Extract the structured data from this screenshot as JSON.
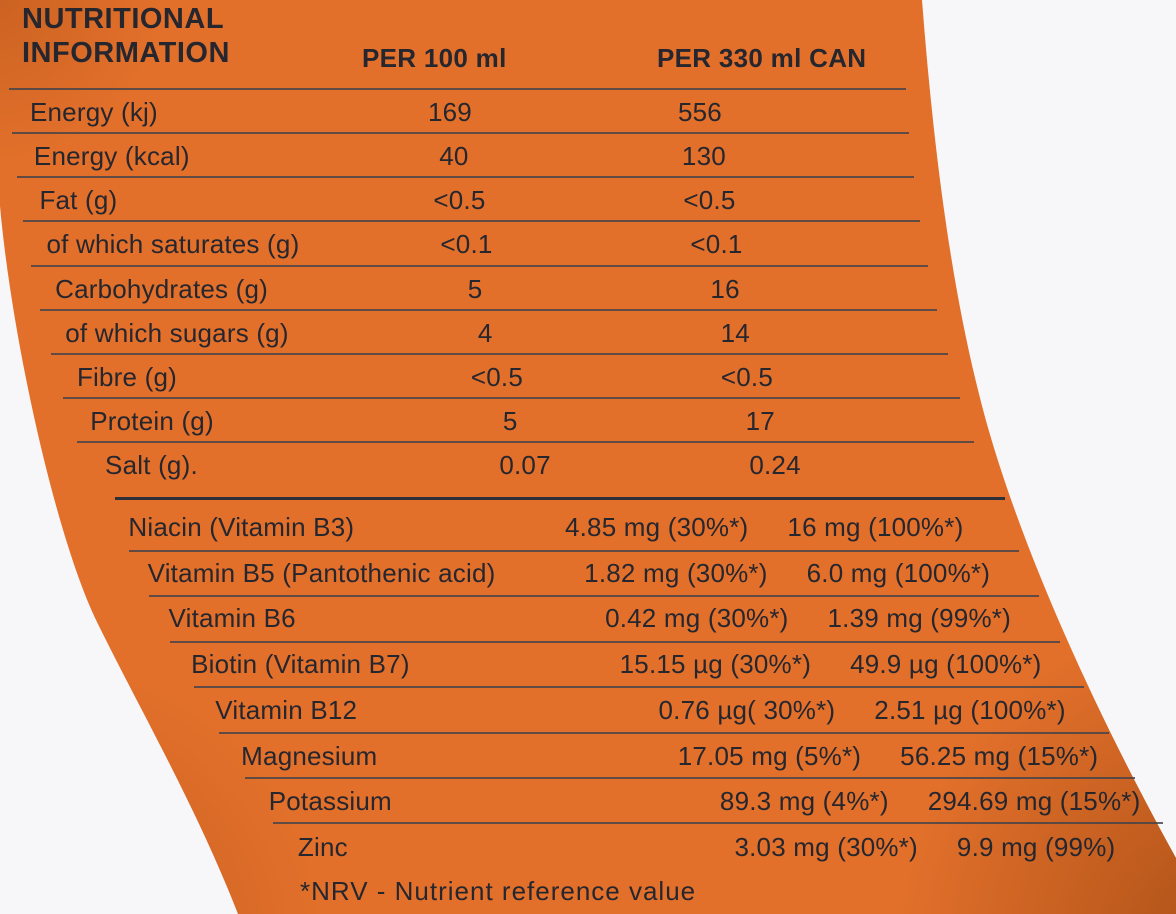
{
  "header": {
    "title_line1": "NUTRITIONAL",
    "title_line2": "INFORMATION",
    "col_per_100ml": "PER 100 ml",
    "col_per_330ml": "PER 330 ml CAN"
  },
  "table": {
    "columns": [
      "PER 100 ml",
      "PER 330 ml CAN"
    ],
    "macronutrients": [
      {
        "label": "Energy (kj)",
        "per_100ml": "169",
        "per_330ml": "556"
      },
      {
        "label": "Energy (kcal)",
        "per_100ml": "40",
        "per_330ml": "130"
      },
      {
        "label": "Fat (g)",
        "per_100ml": "<0.5",
        "per_330ml": "<0.5"
      },
      {
        "label": "of which saturates (g)",
        "per_100ml": "<0.1",
        "per_330ml": "<0.1"
      },
      {
        "label": "Carbohydrates (g)",
        "per_100ml": "5",
        "per_330ml": "16"
      },
      {
        "label": "of which sugars (g)",
        "per_100ml": "4",
        "per_330ml": "14"
      },
      {
        "label": "Fibre (g)",
        "per_100ml": "<0.5",
        "per_330ml": "<0.5"
      },
      {
        "label": "Protein (g)",
        "per_100ml": "5",
        "per_330ml": "17"
      },
      {
        "label": "Salt (g).",
        "per_100ml": "0.07",
        "per_330ml": "0.24"
      }
    ],
    "micronutrients": [
      {
        "label": "Niacin (Vitamin B3)",
        "per_100ml": "4.85 mg (30%*)",
        "per_330ml": "16 mg (100%*)"
      },
      {
        "label": "Vitamin B5 (Pantothenic acid)",
        "per_100ml": "1.82 mg (30%*)",
        "per_330ml": "6.0 mg (100%*)"
      },
      {
        "label": "Vitamin B6",
        "per_100ml": "0.42 mg (30%*)",
        "per_330ml": "1.39 mg (99%*)"
      },
      {
        "label": "Biotin (Vitamin B7)",
        "per_100ml": "15.15 µg (30%*)",
        "per_330ml": "49.9 µg (100%*)"
      },
      {
        "label": "Vitamin B12",
        "per_100ml": "0.76 µg( 30%*)",
        "per_330ml": "2.51 µg (100%*)"
      },
      {
        "label": "Magnesium",
        "per_100ml": "17.05 mg (5%*)",
        "per_330ml": "56.25 mg (15%*)"
      },
      {
        "label": "Potassium",
        "per_100ml": "89.3 mg (4%*)",
        "per_330ml": "294.69 mg (15%*)"
      },
      {
        "label": "Zinc",
        "per_100ml": "3.03 mg (30%*)",
        "per_330ml": "9.9 mg (99%)"
      }
    ]
  },
  "footnote": "*NRV - Nutrient reference value",
  "colors": {
    "label_orange": "#e2702b",
    "background": "#f7f7f9",
    "text": "#26262e"
  }
}
